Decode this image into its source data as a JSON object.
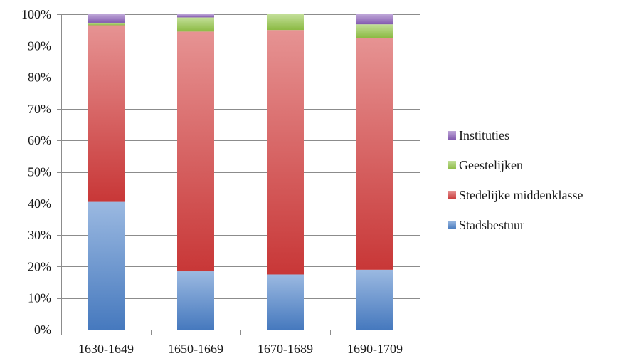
{
  "chart_data": {
    "type": "bar",
    "stacked": true,
    "percent": true,
    "categories": [
      "1630-1649",
      "1650-1669",
      "1670-1689",
      "1690-1709"
    ],
    "series": [
      {
        "name": "Stadsbestuur",
        "values": [
          40.5,
          18.5,
          17.5,
          19.0
        ],
        "color": "#4a7fc8"
      },
      {
        "name": "Stedelijke middenklasse",
        "values": [
          56.0,
          76.0,
          77.5,
          73.5
        ],
        "color": "#d23a3a"
      },
      {
        "name": "Geestelijken",
        "values": [
          0.8,
          4.5,
          5.0,
          4.3
        ],
        "color": "#92c446"
      },
      {
        "name": "Instituties",
        "values": [
          2.7,
          1.0,
          0.0,
          3.2
        ],
        "color": "#8a5fb8"
      }
    ],
    "ylim": [
      0,
      100
    ],
    "yticks": [
      "0%",
      "10%",
      "20%",
      "30%",
      "40%",
      "50%",
      "60%",
      "70%",
      "80%",
      "90%",
      "100%"
    ],
    "grid": true,
    "legend_position": "right",
    "legend_order": [
      "Instituties",
      "Geestelijken",
      "Stedelijke middenklasse",
      "Stadsbestuur"
    ]
  }
}
